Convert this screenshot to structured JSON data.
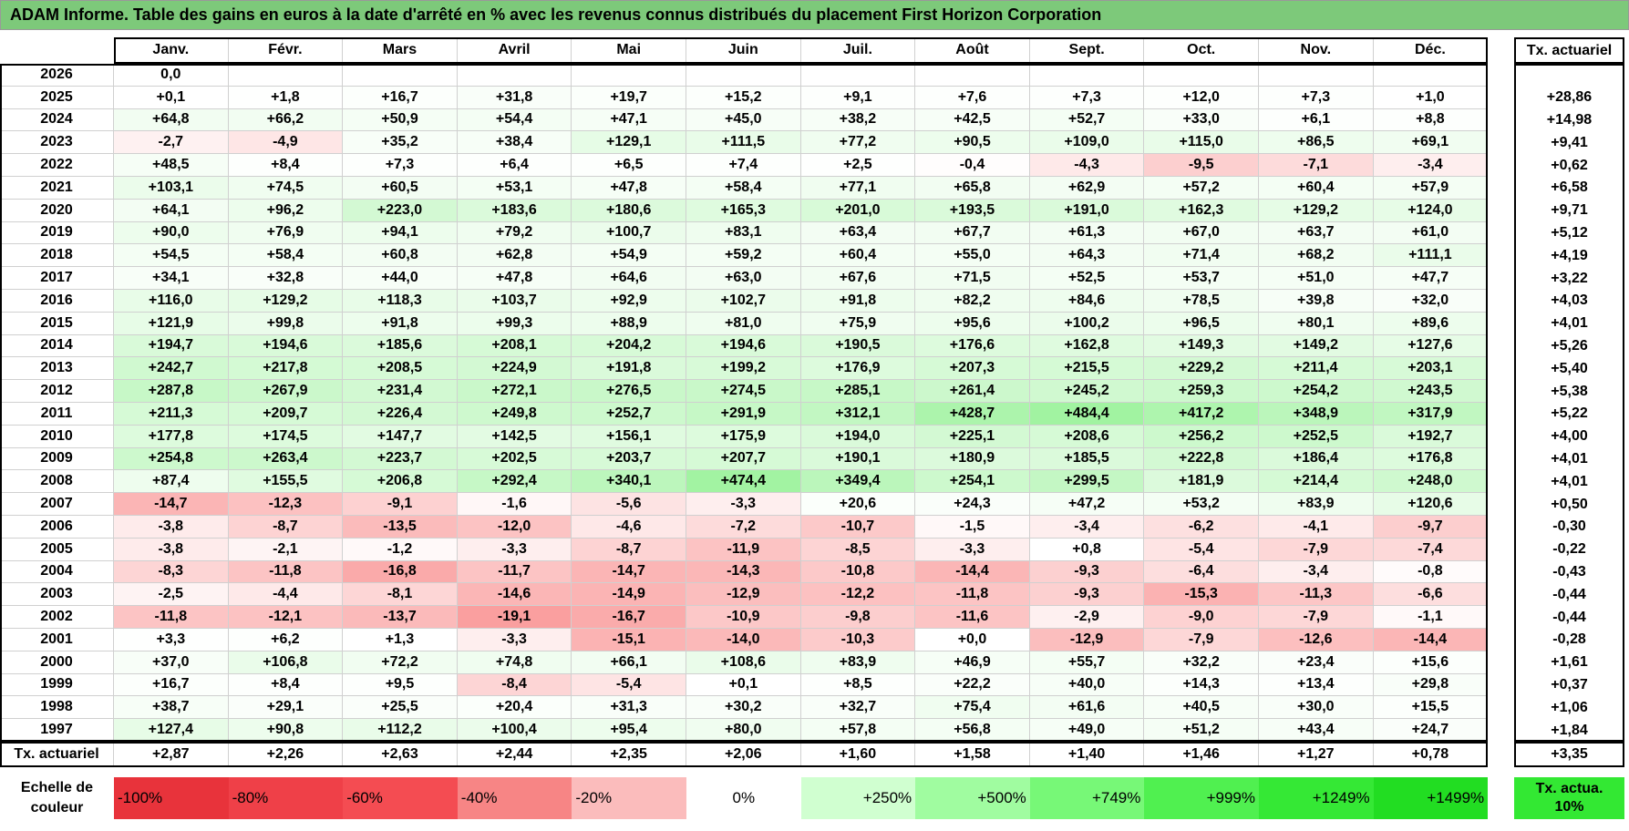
{
  "title": "ADAM Informe. Table des gains en euros à la date d'arrêté en % avec les revenus connus distribués du placement First Horizon Corporation",
  "table": {
    "header": [
      "Janv.",
      "Févr.",
      "Mars",
      "Avril",
      "Mai",
      "Juin",
      "Juil.",
      "Août",
      "Sept.",
      "Oct.",
      "Nov.",
      "Déc."
    ],
    "total_header": "Tx. actuariel",
    "rows": [
      {
        "year": "2026",
        "months": [
          "0,0"
        ]
      },
      {
        "year": "2025",
        "months": [
          "+0,1",
          "+1,8",
          "+16,7",
          "+31,8",
          "+19,7",
          "+15,2",
          "+9,1",
          "+7,6",
          "+7,3",
          "+12,0",
          "+7,3",
          "+1,0"
        ],
        "total": "+28,86"
      },
      {
        "year": "2024",
        "months": [
          "+64,8",
          "+66,2",
          "+50,9",
          "+54,4",
          "+47,1",
          "+45,0",
          "+38,2",
          "+42,5",
          "+52,7",
          "+33,0",
          "+6,1",
          "+8,8"
        ],
        "total": "+14,98"
      },
      {
        "year": "2023",
        "months": [
          "-2,7",
          "-4,9",
          "+35,2",
          "+38,4",
          "+129,1",
          "+111,5",
          "+77,2",
          "+90,5",
          "+109,0",
          "+115,0",
          "+86,5",
          "+69,1"
        ],
        "total": "+9,41"
      },
      {
        "year": "2022",
        "months": [
          "+48,5",
          "+8,4",
          "+7,3",
          "+6,4",
          "+6,5",
          "+7,4",
          "+2,5",
          "-0,4",
          "-4,3",
          "-9,5",
          "-7,1",
          "-3,4"
        ],
        "total": "+0,62"
      },
      {
        "year": "2021",
        "months": [
          "+103,1",
          "+74,5",
          "+60,5",
          "+53,1",
          "+47,8",
          "+58,4",
          "+77,1",
          "+65,8",
          "+62,9",
          "+57,2",
          "+60,4",
          "+57,9"
        ],
        "total": "+6,58"
      },
      {
        "year": "2020",
        "months": [
          "+64,1",
          "+96,2",
          "+223,0",
          "+183,6",
          "+180,6",
          "+165,3",
          "+201,0",
          "+193,5",
          "+191,0",
          "+162,3",
          "+129,2",
          "+124,0"
        ],
        "total": "+9,71"
      },
      {
        "year": "2019",
        "months": [
          "+90,0",
          "+76,9",
          "+94,1",
          "+79,2",
          "+100,7",
          "+83,1",
          "+63,4",
          "+67,7",
          "+61,3",
          "+67,0",
          "+63,7",
          "+61,0"
        ],
        "total": "+5,12"
      },
      {
        "year": "2018",
        "months": [
          "+54,5",
          "+58,4",
          "+60,8",
          "+62,8",
          "+54,9",
          "+59,2",
          "+60,4",
          "+55,0",
          "+64,3",
          "+71,4",
          "+68,2",
          "+111,1"
        ],
        "total": "+4,19"
      },
      {
        "year": "2017",
        "months": [
          "+34,1",
          "+32,8",
          "+44,0",
          "+47,8",
          "+64,6",
          "+63,0",
          "+67,6",
          "+71,5",
          "+52,5",
          "+53,7",
          "+51,0",
          "+47,7"
        ],
        "total": "+3,22"
      },
      {
        "year": "2016",
        "months": [
          "+116,0",
          "+129,2",
          "+118,3",
          "+103,7",
          "+92,9",
          "+102,7",
          "+91,8",
          "+82,2",
          "+84,6",
          "+78,5",
          "+39,8",
          "+32,0"
        ],
        "total": "+4,03"
      },
      {
        "year": "2015",
        "months": [
          "+121,9",
          "+99,8",
          "+91,8",
          "+99,3",
          "+88,9",
          "+81,0",
          "+75,9",
          "+95,6",
          "+100,2",
          "+96,5",
          "+80,1",
          "+89,6"
        ],
        "total": "+4,01"
      },
      {
        "year": "2014",
        "months": [
          "+194,7",
          "+194,6",
          "+185,6",
          "+208,1",
          "+204,2",
          "+194,6",
          "+190,5",
          "+176,6",
          "+162,8",
          "+149,3",
          "+149,2",
          "+127,6"
        ],
        "total": "+5,26"
      },
      {
        "year": "2013",
        "months": [
          "+242,7",
          "+217,8",
          "+208,5",
          "+224,9",
          "+191,8",
          "+199,2",
          "+176,9",
          "+207,3",
          "+215,5",
          "+229,2",
          "+211,4",
          "+203,1"
        ],
        "total": "+5,40"
      },
      {
        "year": "2012",
        "months": [
          "+287,8",
          "+267,9",
          "+231,4",
          "+272,1",
          "+276,5",
          "+274,5",
          "+285,1",
          "+261,4",
          "+245,2",
          "+259,3",
          "+254,2",
          "+243,5"
        ],
        "total": "+5,38"
      },
      {
        "year": "2011",
        "months": [
          "+211,3",
          "+209,7",
          "+226,4",
          "+249,8",
          "+252,7",
          "+291,9",
          "+312,1",
          "+428,7",
          "+484,4",
          "+417,2",
          "+348,9",
          "+317,9"
        ],
        "total": "+5,22"
      },
      {
        "year": "2010",
        "months": [
          "+177,8",
          "+174,5",
          "+147,7",
          "+142,5",
          "+156,1",
          "+175,9",
          "+194,0",
          "+225,1",
          "+208,6",
          "+256,2",
          "+252,5",
          "+192,7"
        ],
        "total": "+4,00"
      },
      {
        "year": "2009",
        "months": [
          "+254,8",
          "+263,4",
          "+223,7",
          "+202,5",
          "+203,7",
          "+207,7",
          "+190,1",
          "+180,9",
          "+185,5",
          "+222,8",
          "+186,4",
          "+176,8"
        ],
        "total": "+4,01"
      },
      {
        "year": "2008",
        "months": [
          "+87,4",
          "+155,5",
          "+206,8",
          "+292,4",
          "+340,1",
          "+474,4",
          "+349,4",
          "+254,1",
          "+299,5",
          "+181,9",
          "+214,4",
          "+248,0"
        ],
        "total": "+4,01"
      },
      {
        "year": "2007",
        "months": [
          "-14,7",
          "-12,3",
          "-9,1",
          "-1,6",
          "-5,6",
          "-3,3",
          "+20,6",
          "+24,3",
          "+47,2",
          "+53,2",
          "+83,9",
          "+120,6"
        ],
        "total": "+0,50"
      },
      {
        "year": "2006",
        "months": [
          "-3,8",
          "-8,7",
          "-13,5",
          "-12,0",
          "-4,6",
          "-7,2",
          "-10,7",
          "-1,5",
          "-3,4",
          "-6,2",
          "-4,1",
          "-9,7"
        ],
        "total": "-0,30"
      },
      {
        "year": "2005",
        "months": [
          "-3,8",
          "-2,1",
          "-1,2",
          "-3,3",
          "-8,7",
          "-11,9",
          "-8,5",
          "-3,3",
          "+0,8",
          "-5,4",
          "-7,9",
          "-7,4"
        ],
        "total": "-0,22"
      },
      {
        "year": "2004",
        "months": [
          "-8,3",
          "-11,8",
          "-16,8",
          "-11,7",
          "-14,7",
          "-14,3",
          "-10,8",
          "-14,4",
          "-9,3",
          "-6,4",
          "-3,4",
          "-0,8"
        ],
        "total": "-0,43"
      },
      {
        "year": "2003",
        "months": [
          "-2,5",
          "-4,4",
          "-8,1",
          "-14,6",
          "-14,9",
          "-12,9",
          "-12,2",
          "-11,8",
          "-9,3",
          "-15,3",
          "-11,3",
          "-6,6"
        ],
        "total": "-0,44"
      },
      {
        "year": "2002",
        "months": [
          "-11,8",
          "-12,1",
          "-13,7",
          "-19,1",
          "-16,7",
          "-10,9",
          "-9,8",
          "-11,6",
          "-2,9",
          "-9,0",
          "-7,9",
          "-1,1"
        ],
        "total": "-0,44"
      },
      {
        "year": "2001",
        "months": [
          "+3,3",
          "+6,2",
          "+1,3",
          "-3,3",
          "-15,1",
          "-14,0",
          "-10,3",
          "+0,0",
          "-12,9",
          "-7,9",
          "-12,6",
          "-14,4"
        ],
        "total": "-0,28"
      },
      {
        "year": "2000",
        "months": [
          "+37,0",
          "+106,8",
          "+72,2",
          "+74,8",
          "+66,1",
          "+108,6",
          "+83,9",
          "+46,9",
          "+55,7",
          "+32,2",
          "+23,4",
          "+15,6"
        ],
        "total": "+1,61"
      },
      {
        "year": "1999",
        "months": [
          "+16,7",
          "+8,4",
          "+9,5",
          "-8,4",
          "-5,4",
          "+0,1",
          "+8,5",
          "+22,2",
          "+40,0",
          "+14,3",
          "+13,4",
          "+29,8"
        ],
        "total": "+0,37"
      },
      {
        "year": "1998",
        "months": [
          "+38,7",
          "+29,1",
          "+25,5",
          "+20,4",
          "+31,3",
          "+30,2",
          "+32,7",
          "+75,4",
          "+61,6",
          "+40,5",
          "+30,0",
          "+15,5"
        ],
        "total": "+1,06"
      },
      {
        "year": "1997",
        "months": [
          "+127,4",
          "+90,8",
          "+112,2",
          "+100,4",
          "+95,4",
          "+80,0",
          "+57,8",
          "+56,8",
          "+49,0",
          "+51,2",
          "+43,4",
          "+24,7"
        ],
        "total": "+1,84"
      }
    ],
    "footer": {
      "label": "Tx. actuariel",
      "months": [
        "+2,87",
        "+2,26",
        "+2,63",
        "+2,44",
        "+2,35",
        "+2,06",
        "+1,60",
        "+1,58",
        "+1,40",
        "+1,46",
        "+1,27",
        "+0,78"
      ],
      "total": "+3,35"
    }
  },
  "legend": {
    "label": "Echelle de couleur",
    "items": [
      {
        "text": "-100%",
        "color": "#e8333b"
      },
      {
        "text": "-80%",
        "color": "#ef4048"
      },
      {
        "text": "-60%",
        "color": "#f44c52"
      },
      {
        "text": "-40%",
        "color": "#f78585"
      },
      {
        "text": "-20%",
        "color": "#fbbcbc"
      },
      {
        "text": "0%",
        "color": "#ffffff"
      },
      {
        "text": "+250%",
        "color": "#d0ffd0"
      },
      {
        "text": "+500%",
        "color": "#a0fca0"
      },
      {
        "text": "+749%",
        "color": "#77f877"
      },
      {
        "text": "+999%",
        "color": "#50f050"
      },
      {
        "text": "+1249%",
        "color": "#35e835"
      },
      {
        "text": "+1499%",
        "color": "#22dd22"
      }
    ],
    "total": "Tx. actua. 10%",
    "total_color": "#33e833"
  }
}
